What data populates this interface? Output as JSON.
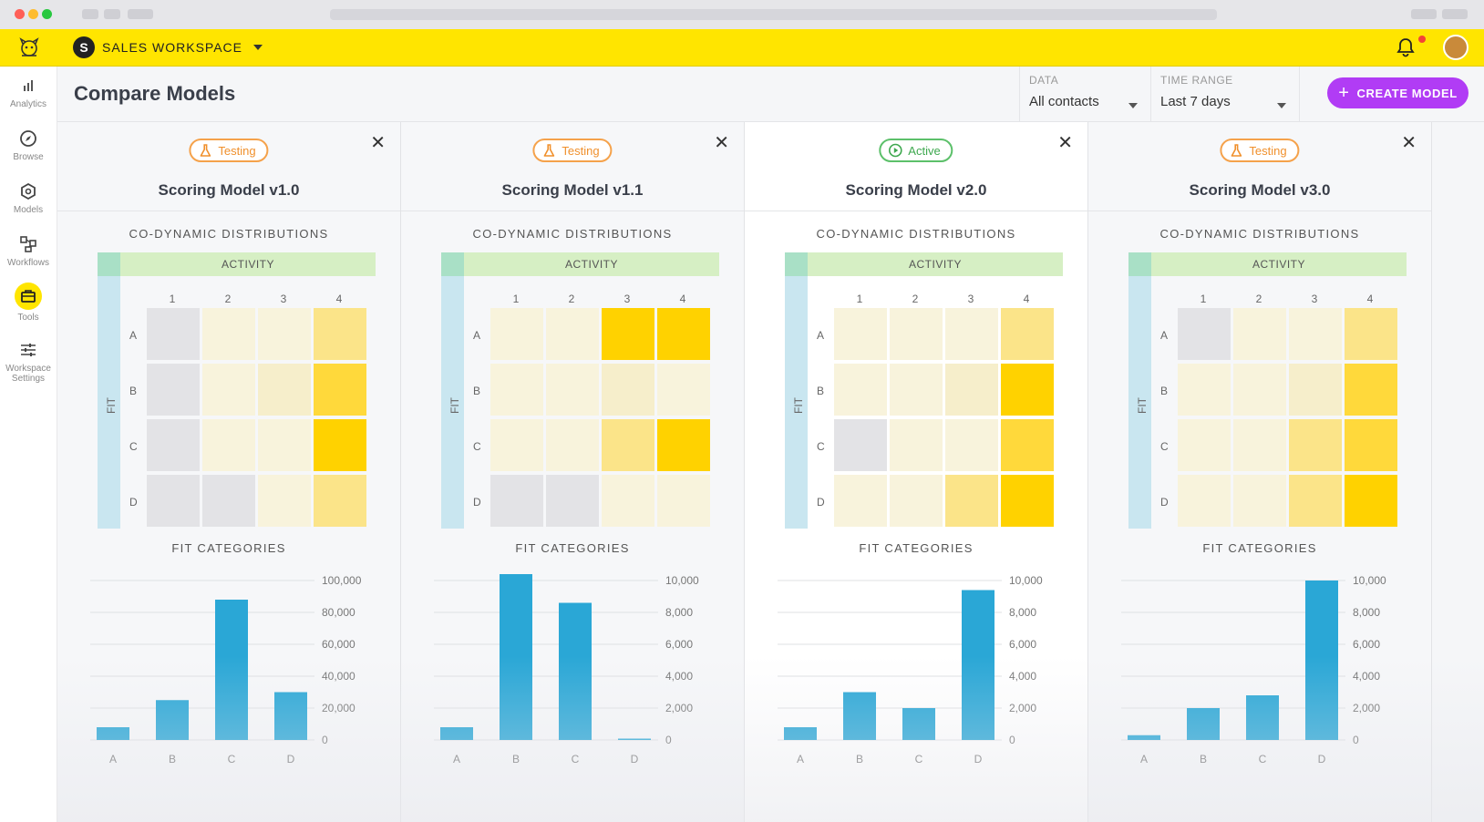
{
  "app": {
    "workspace_name": "SALES WORKSPACE",
    "workspace_initial": "S"
  },
  "sidebar": {
    "items": [
      {
        "label": "Analytics",
        "icon": "bar-chart-icon"
      },
      {
        "label": "Browse",
        "icon": "compass-icon"
      },
      {
        "label": "Models",
        "icon": "cube-icon"
      },
      {
        "label": "Workflows",
        "icon": "workflow-icon"
      },
      {
        "label": "Tools",
        "icon": "toolbox-icon",
        "active": true
      },
      {
        "label": "Workspace Settings",
        "icon": "sliders-icon"
      }
    ]
  },
  "header": {
    "title": "Compare Models",
    "data_filter": {
      "label": "DATA",
      "value": "All contacts"
    },
    "time_filter": {
      "label": "TIME RANGE",
      "value": "Last 7 days"
    },
    "create_button": "CREATE MODEL"
  },
  "labels": {
    "codynamic": "CO-DYNAMIC DISTRIBUTIONS",
    "activity": "ACTIVITY",
    "fit": "FIT",
    "fit_categories": "FIT CATEGORIES",
    "activity_cols": [
      "1",
      "2",
      "3",
      "4"
    ],
    "fit_rows": [
      "A",
      "B",
      "C",
      "D"
    ]
  },
  "colors": {
    "accent": "#ffe500",
    "create_button": "#b13cf5",
    "bar": "#2aa7d6",
    "testing_badge": "#f5a24b",
    "active_badge": "#5cc06a"
  },
  "panels": [
    {
      "status": "Testing",
      "status_type": "testing",
      "name": "Scoring Model v1.0",
      "matrix": [
        [
          0,
          1,
          1,
          3
        ],
        [
          0,
          1,
          2,
          4
        ],
        [
          0,
          1,
          1,
          5
        ],
        [
          0,
          0,
          1,
          3
        ]
      ],
      "chart_data": {
        "type": "bar",
        "categories": [
          "A",
          "B",
          "C",
          "D"
        ],
        "values": [
          8000,
          25000,
          88000,
          30000
        ],
        "ylim": [
          0,
          100000
        ],
        "ticks": [
          "100,000",
          "80,000",
          "60,000",
          "40,000",
          "20,000",
          "0"
        ]
      }
    },
    {
      "status": "Testing",
      "status_type": "testing",
      "name": "Scoring Model v1.1",
      "matrix": [
        [
          1,
          1,
          5,
          5
        ],
        [
          1,
          1,
          2,
          1
        ],
        [
          1,
          1,
          3,
          5
        ],
        [
          0,
          0,
          1,
          1
        ]
      ],
      "chart_data": {
        "type": "bar",
        "categories": [
          "A",
          "B",
          "C",
          "D"
        ],
        "values": [
          800,
          10400,
          8600,
          50
        ],
        "ylim": [
          0,
          10000
        ],
        "ticks": [
          "10,000",
          "8,000",
          "6,000",
          "4,000",
          "2,000",
          "0"
        ]
      }
    },
    {
      "status": "Active",
      "status_type": "active",
      "name": "Scoring Model v2.0",
      "matrix": [
        [
          1,
          1,
          1,
          3
        ],
        [
          1,
          1,
          2,
          5
        ],
        [
          0,
          1,
          1,
          4
        ],
        [
          1,
          1,
          3,
          5
        ]
      ],
      "chart_data": {
        "type": "bar",
        "categories": [
          "A",
          "B",
          "C",
          "D"
        ],
        "values": [
          800,
          3000,
          2000,
          9400
        ],
        "ylim": [
          0,
          10000
        ],
        "ticks": [
          "10,000",
          "8,000",
          "6,000",
          "4,000",
          "2,000",
          "0"
        ]
      }
    },
    {
      "status": "Testing",
      "status_type": "testing",
      "name": "Scoring Model v3.0",
      "matrix": [
        [
          0,
          1,
          1,
          3
        ],
        [
          1,
          1,
          2,
          4
        ],
        [
          1,
          1,
          3,
          4
        ],
        [
          1,
          1,
          3,
          5
        ]
      ],
      "chart_data": {
        "type": "bar",
        "categories": [
          "A",
          "B",
          "C",
          "D"
        ],
        "values": [
          300,
          2000,
          2800,
          10000
        ],
        "ylim": [
          0,
          10000
        ],
        "ticks": [
          "10,000",
          "8,000",
          "6,000",
          "4,000",
          "2,000",
          "0"
        ]
      }
    }
  ]
}
